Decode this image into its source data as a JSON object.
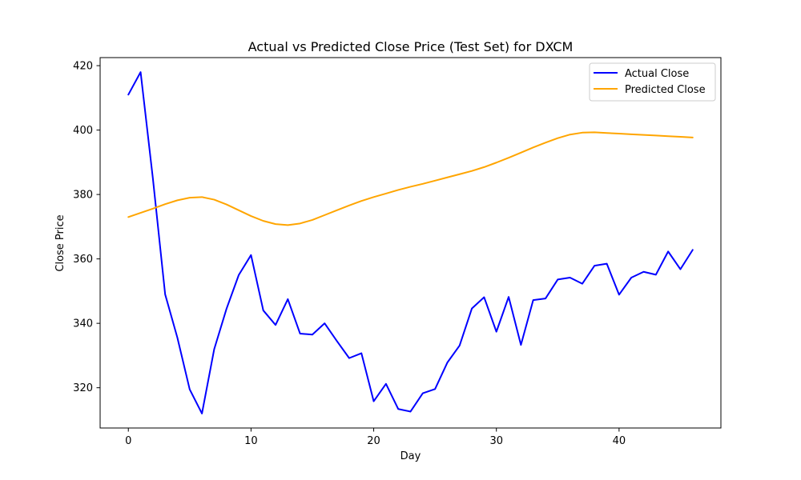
{
  "chart_data": {
    "type": "line",
    "title": "Actual vs Predicted Close Price (Test Set) for DXCM",
    "xlabel": "Day",
    "ylabel": "Close Price",
    "xlim": [
      -2.3,
      48.3
    ],
    "ylim": [
      307.5,
      422.5
    ],
    "xticks": [
      0,
      10,
      20,
      30,
      40
    ],
    "yticks": [
      320,
      340,
      360,
      380,
      400,
      420
    ],
    "grid": false,
    "legend_position": "top-right",
    "x": [
      0,
      1,
      2,
      3,
      4,
      5,
      6,
      7,
      8,
      9,
      10,
      11,
      12,
      13,
      14,
      15,
      16,
      17,
      18,
      19,
      20,
      21,
      22,
      23,
      24,
      25,
      26,
      27,
      28,
      29,
      30,
      31,
      32,
      33,
      34,
      35,
      36,
      37,
      38,
      39,
      40,
      41,
      42,
      43,
      44,
      45,
      46
    ],
    "series": [
      {
        "name": "Actual Close",
        "color": "#0000ff",
        "values": [
          411,
          418,
          385,
          349,
          335.5,
          319.5,
          312,
          332,
          344.5,
          355,
          361.2,
          344,
          339.5,
          347.5,
          336.8,
          336.5,
          340,
          334.5,
          329.2,
          330.7,
          315.8,
          321.2,
          313.4,
          312.6,
          318.3,
          319.6,
          327.8,
          333.1,
          344.6,
          348.1,
          337.4,
          348.2,
          333.3,
          347.2,
          347.7,
          353.6,
          354.2,
          352.3,
          357.9,
          358.5,
          348.9,
          354.2,
          356,
          355.1,
          362.3,
          356.8,
          362.8
        ]
      },
      {
        "name": "Predicted Close",
        "color": "#ffa500",
        "values": [
          373,
          374.3,
          375.6,
          377,
          378.2,
          379,
          379.2,
          378.4,
          376.9,
          375.1,
          373.3,
          371.8,
          370.8,
          370.5,
          371,
          372.1,
          373.6,
          375.1,
          376.6,
          378,
          379.2,
          380.3,
          381.4,
          382.4,
          383.3,
          384.3,
          385.3,
          386.3,
          387.3,
          388.5,
          389.9,
          391.4,
          393,
          394.6,
          396.1,
          397.5,
          398.6,
          399.2,
          399.3,
          399.1,
          398.9,
          398.7,
          398.5,
          398.3,
          398.1,
          397.9,
          397.7
        ]
      }
    ]
  }
}
